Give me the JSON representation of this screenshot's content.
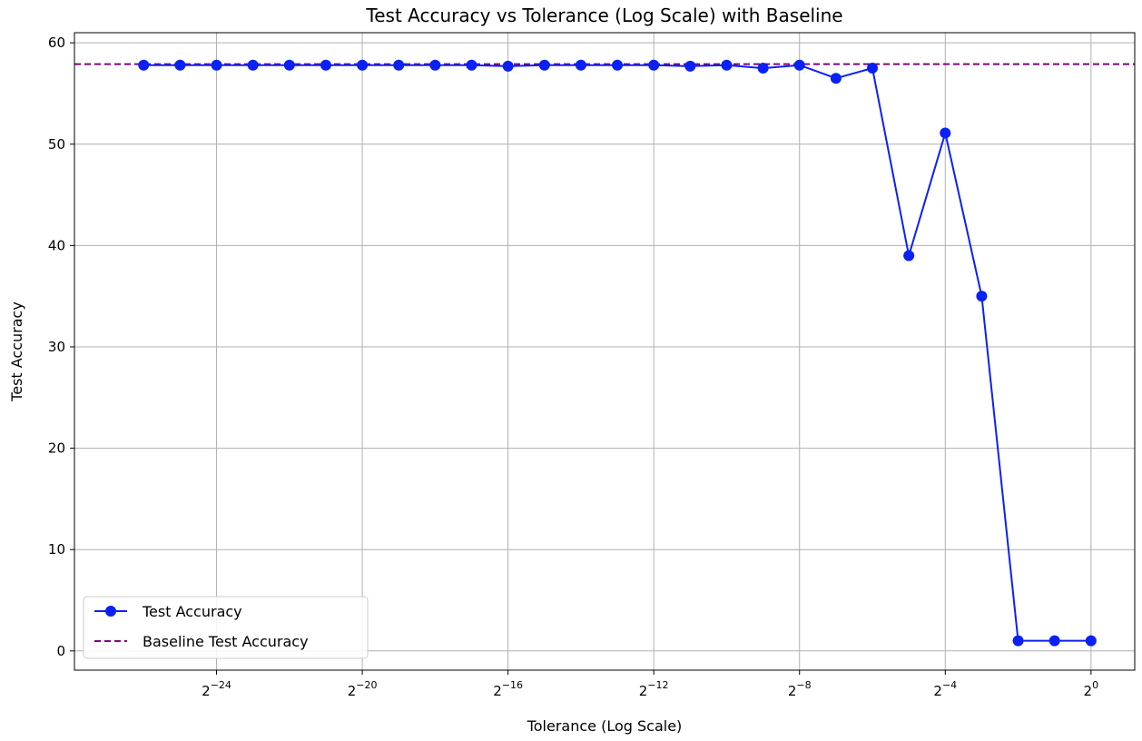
{
  "chart_data": {
    "type": "line",
    "title": "Test Accuracy vs Tolerance (Log Scale) with Baseline",
    "xlabel": "Tolerance (Log Scale)",
    "ylabel": "Test Accuracy",
    "x_scale": "log2",
    "x_ticks": [
      {
        "value": -24,
        "base": "2",
        "exp": "−24"
      },
      {
        "value": -20,
        "base": "2",
        "exp": "−20"
      },
      {
        "value": -16,
        "base": "2",
        "exp": "−16"
      },
      {
        "value": -12,
        "base": "2",
        "exp": "−12"
      },
      {
        "value": -8,
        "base": "2",
        "exp": "−8"
      },
      {
        "value": -4,
        "base": "2",
        "exp": "−4"
      },
      {
        "value": 0,
        "base": "2",
        "exp": "0"
      }
    ],
    "y_ticks": [
      "0",
      "10",
      "20",
      "30",
      "40",
      "50",
      "60"
    ],
    "xlim_log2": [
      -27.9,
      1.2
    ],
    "ylim": [
      -1.9,
      61.0
    ],
    "grid": true,
    "legend_position": "lower-left",
    "series": [
      {
        "name": "Test Accuracy",
        "color": "#0a21f5",
        "marker": "circle",
        "x_log2": [
          -26,
          -25,
          -24,
          -23,
          -22,
          -21,
          -20,
          -19,
          -18,
          -17,
          -16,
          -15,
          -14,
          -13,
          -12,
          -11,
          -10,
          -9,
          -8,
          -7,
          -6,
          -5,
          -4,
          -3,
          -2,
          -1,
          0
        ],
        "values": [
          57.8,
          57.8,
          57.8,
          57.8,
          57.8,
          57.8,
          57.8,
          57.8,
          57.8,
          57.8,
          57.7,
          57.8,
          57.8,
          57.8,
          57.8,
          57.7,
          57.8,
          57.5,
          57.8,
          56.5,
          57.5,
          39.0,
          51.1,
          35.0,
          1.0,
          1.0,
          1.0
        ]
      },
      {
        "name": "Baseline Test Accuracy",
        "color": "#800080",
        "style": "dashed",
        "value": 57.9
      }
    ]
  }
}
